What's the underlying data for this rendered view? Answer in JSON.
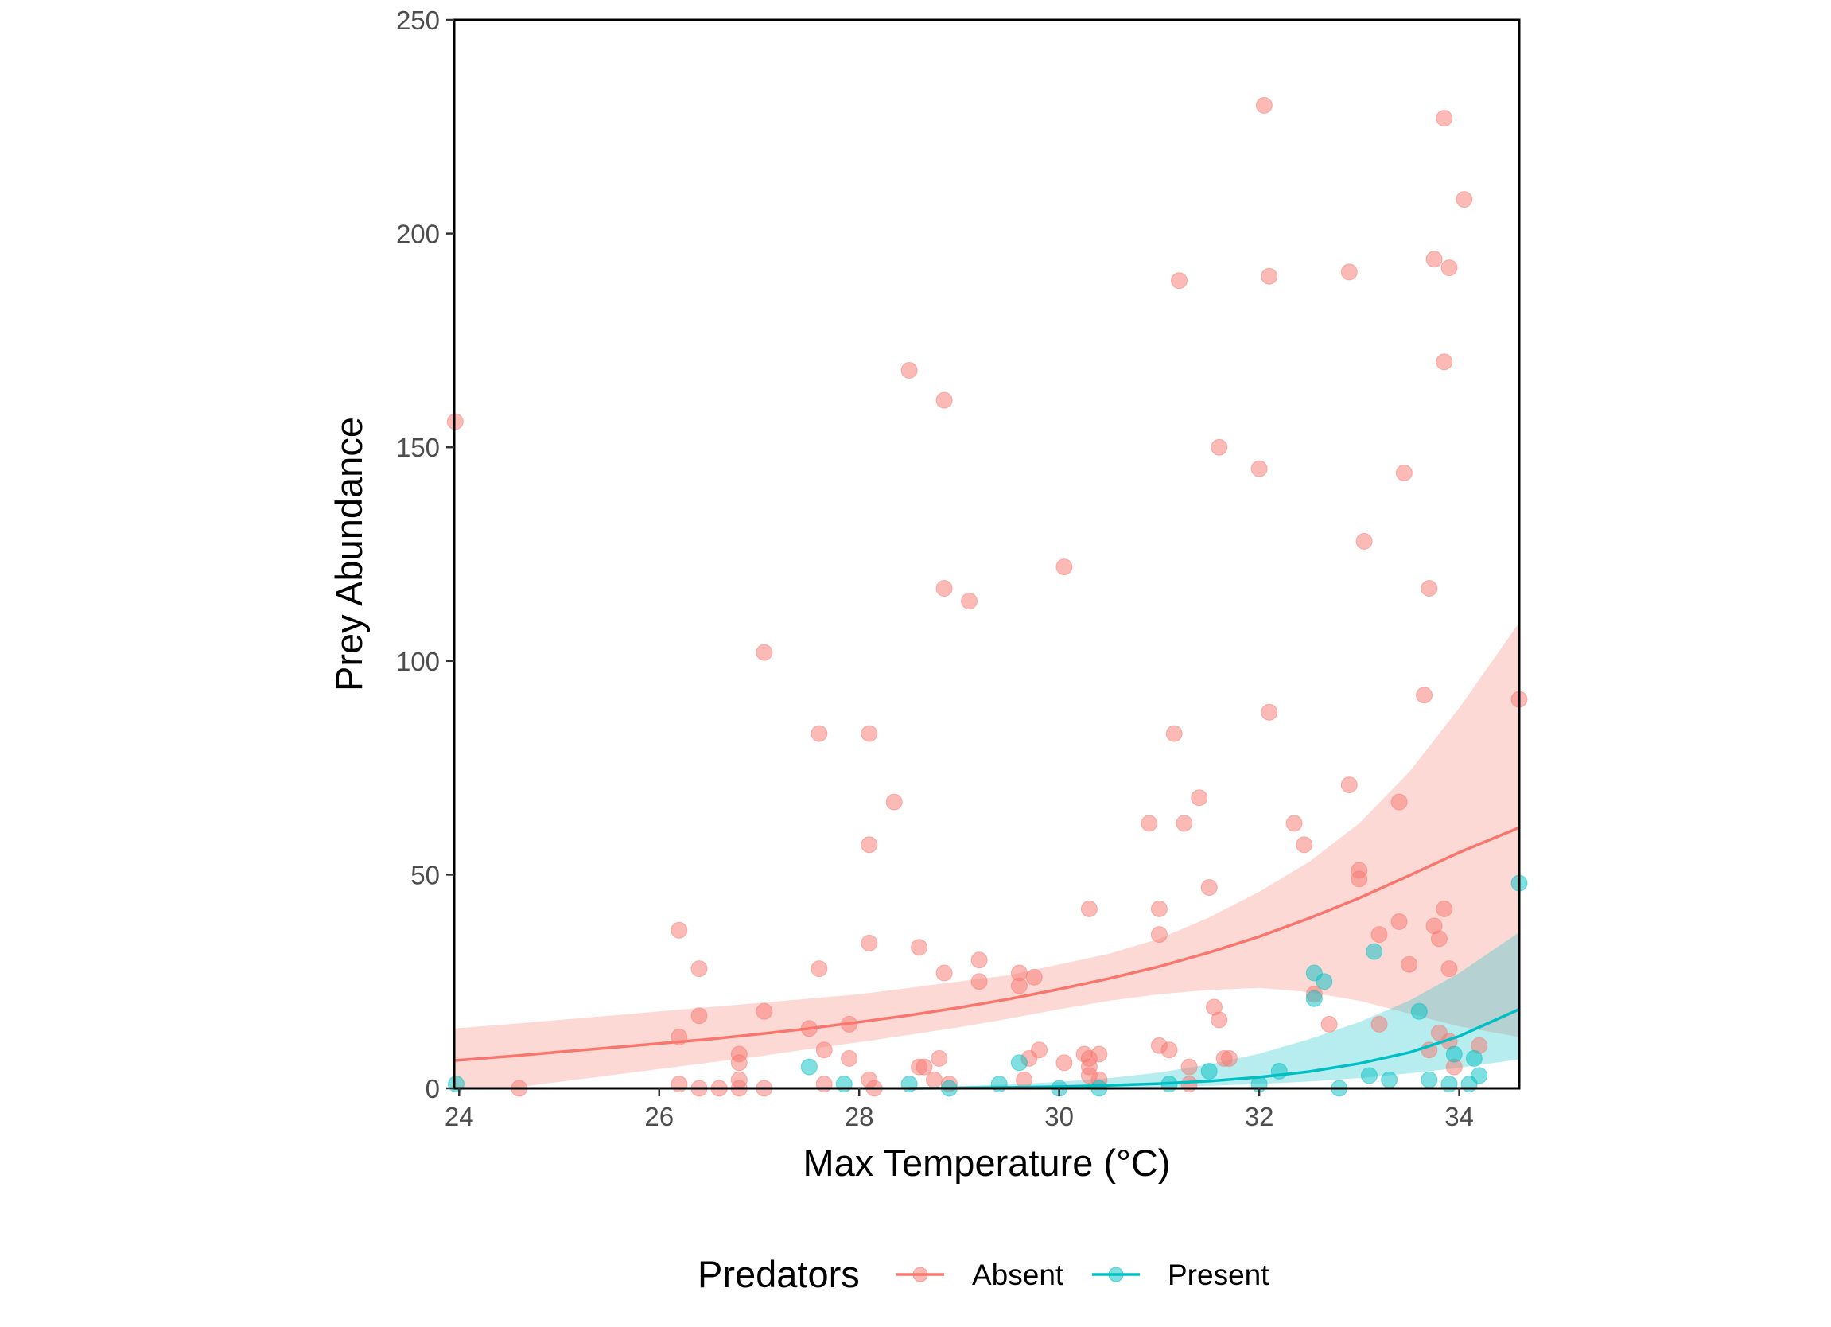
{
  "chart_data": {
    "type": "scatter",
    "title": "",
    "xlabel": "Max Temperature (°C)",
    "ylabel": "Prey Abundance",
    "xlim": [
      23.95,
      34.6
    ],
    "ylim": [
      0,
      250
    ],
    "x_ticks": [
      24,
      26,
      28,
      30,
      32,
      34
    ],
    "y_ticks": [
      0,
      50,
      100,
      150,
      200,
      250
    ],
    "grid": false,
    "legend": {
      "title": "Predators",
      "position": "bottom",
      "entries": [
        "Absent",
        "Present"
      ]
    },
    "colors": {
      "Absent": "#F8766D",
      "Present": "#00BFC4",
      "Absent_band": "#F8766D",
      "Present_band": "#00BFC4"
    },
    "series": [
      {
        "name": "Absent",
        "points": [
          [
            23.96,
            156
          ],
          [
            24.6,
            0
          ],
          [
            26.2,
            37
          ],
          [
            26.2,
            12
          ],
          [
            26.2,
            1
          ],
          [
            26.4,
            28
          ],
          [
            26.4,
            17
          ],
          [
            26.4,
            0
          ],
          [
            26.6,
            0
          ],
          [
            26.8,
            8
          ],
          [
            26.8,
            6
          ],
          [
            26.8,
            2
          ],
          [
            26.8,
            0
          ],
          [
            27.05,
            102
          ],
          [
            27.05,
            18
          ],
          [
            27.05,
            0
          ],
          [
            27.5,
            14
          ],
          [
            27.6,
            83
          ],
          [
            27.6,
            28
          ],
          [
            27.65,
            9
          ],
          [
            27.65,
            1
          ],
          [
            27.9,
            15
          ],
          [
            27.9,
            7
          ],
          [
            28.1,
            83
          ],
          [
            28.1,
            57
          ],
          [
            28.1,
            34
          ],
          [
            28.1,
            2
          ],
          [
            28.15,
            0
          ],
          [
            28.35,
            67
          ],
          [
            28.5,
            168
          ],
          [
            28.6,
            33
          ],
          [
            28.6,
            5
          ],
          [
            28.65,
            5
          ],
          [
            28.75,
            2
          ],
          [
            28.8,
            7
          ],
          [
            28.85,
            161
          ],
          [
            28.85,
            117
          ],
          [
            28.85,
            27
          ],
          [
            28.9,
            1
          ],
          [
            29.1,
            114
          ],
          [
            29.2,
            30
          ],
          [
            29.2,
            25
          ],
          [
            29.6,
            27
          ],
          [
            29.6,
            24
          ],
          [
            29.65,
            2
          ],
          [
            29.7,
            7
          ],
          [
            29.75,
            26
          ],
          [
            29.8,
            9
          ],
          [
            30.05,
            122
          ],
          [
            30.05,
            6
          ],
          [
            30.25,
            8
          ],
          [
            30.3,
            42
          ],
          [
            30.3,
            7
          ],
          [
            30.3,
            5
          ],
          [
            30.3,
            3
          ],
          [
            30.4,
            8
          ],
          [
            30.4,
            2
          ],
          [
            30.9,
            62
          ],
          [
            31.0,
            42
          ],
          [
            31.0,
            36
          ],
          [
            31.0,
            10
          ],
          [
            31.1,
            9
          ],
          [
            31.15,
            83
          ],
          [
            31.2,
            189
          ],
          [
            31.25,
            62
          ],
          [
            31.3,
            5
          ],
          [
            31.3,
            1
          ],
          [
            31.4,
            68
          ],
          [
            31.5,
            47
          ],
          [
            31.55,
            19
          ],
          [
            31.6,
            16
          ],
          [
            31.6,
            150
          ],
          [
            31.65,
            7
          ],
          [
            31.7,
            7
          ],
          [
            32.0,
            145
          ],
          [
            32.05,
            230
          ],
          [
            32.1,
            190
          ],
          [
            32.1,
            88
          ],
          [
            32.35,
            62
          ],
          [
            32.45,
            57
          ],
          [
            32.55,
            22
          ],
          [
            32.7,
            15
          ],
          [
            32.9,
            191
          ],
          [
            32.9,
            71
          ],
          [
            33.0,
            51
          ],
          [
            33.0,
            49
          ],
          [
            33.05,
            128
          ],
          [
            33.2,
            36
          ],
          [
            33.2,
            15
          ],
          [
            33.4,
            67
          ],
          [
            33.4,
            39
          ],
          [
            33.45,
            144
          ],
          [
            33.5,
            29
          ],
          [
            33.65,
            92
          ],
          [
            33.7,
            117
          ],
          [
            33.7,
            9
          ],
          [
            33.75,
            194
          ],
          [
            33.75,
            38
          ],
          [
            33.8,
            35
          ],
          [
            33.8,
            13
          ],
          [
            33.85,
            227
          ],
          [
            33.85,
            170
          ],
          [
            33.85,
            42
          ],
          [
            33.9,
            192
          ],
          [
            33.9,
            28
          ],
          [
            33.9,
            11
          ],
          [
            33.95,
            5
          ],
          [
            34.05,
            208
          ],
          [
            34.2,
            10
          ],
          [
            34.6,
            91
          ]
        ],
        "fit": {
          "x": [
            23.95,
            24.5,
            25,
            25.5,
            26,
            26.5,
            27,
            27.5,
            28,
            28.5,
            29,
            29.5,
            30,
            30.5,
            31,
            31.5,
            32,
            32.5,
            33,
            33.5,
            34,
            34.6
          ],
          "y": [
            6.5,
            7.5,
            8.5,
            9.5,
            10.5,
            11.5,
            12.7,
            14.0,
            15.5,
            17.1,
            18.9,
            20.9,
            23.2,
            25.7,
            28.5,
            31.8,
            35.5,
            39.8,
            44.5,
            49.8,
            55.2,
            61.0
          ],
          "lower": [
            0,
            0,
            1.5,
            3.0,
            4.5,
            6.0,
            7.5,
            9.2,
            10.8,
            12.5,
            14.3,
            16.3,
            18.5,
            20.5,
            22.0,
            23.0,
            23.5,
            22.5,
            20.5,
            17.5,
            14.5,
            12.0
          ],
          "upper": [
            14.0,
            15.0,
            16.0,
            17.0,
            18.0,
            19.0,
            20.0,
            21.0,
            22.0,
            23.5,
            25.0,
            26.5,
            29.0,
            31.5,
            35.0,
            40.0,
            46.0,
            53.0,
            62.0,
            74.0,
            89.0,
            109.0
          ]
        }
      },
      {
        "name": "Present",
        "points": [
          [
            23.97,
            1
          ],
          [
            27.5,
            5
          ],
          [
            27.85,
            1
          ],
          [
            28.5,
            1
          ],
          [
            28.9,
            0
          ],
          [
            29.4,
            1
          ],
          [
            29.6,
            6
          ],
          [
            30.0,
            0
          ],
          [
            30.4,
            0
          ],
          [
            31.1,
            1
          ],
          [
            31.5,
            4
          ],
          [
            32.0,
            1
          ],
          [
            32.2,
            4
          ],
          [
            32.55,
            27
          ],
          [
            32.55,
            21
          ],
          [
            32.65,
            25
          ],
          [
            32.8,
            0
          ],
          [
            33.1,
            3
          ],
          [
            33.15,
            32
          ],
          [
            33.3,
            2
          ],
          [
            33.6,
            18
          ],
          [
            33.7,
            2
          ],
          [
            33.9,
            1
          ],
          [
            33.95,
            8
          ],
          [
            34.1,
            1
          ],
          [
            34.15,
            7
          ],
          [
            34.2,
            3
          ],
          [
            34.6,
            48
          ]
        ],
        "fit": {
          "x": [
            28.5,
            29,
            29.5,
            30,
            30.5,
            31,
            31.5,
            32,
            32.5,
            33,
            33.5,
            34,
            34.6
          ],
          "y": [
            0,
            0.1,
            0.2,
            0.4,
            0.7,
            1.1,
            1.7,
            2.6,
            3.9,
            5.8,
            8.4,
            12.2,
            18.5
          ],
          "lower": [
            0,
            0,
            0,
            0,
            0.1,
            0.3,
            0.6,
            1.0,
            1.6,
            2.4,
            3.5,
            4.8,
            6.8
          ],
          "upper": [
            0,
            0.5,
            0.9,
            1.5,
            2.4,
            3.7,
            5.6,
            8.1,
            11.5,
            15.5,
            20.5,
            27.0,
            36.5
          ]
        }
      }
    ]
  }
}
